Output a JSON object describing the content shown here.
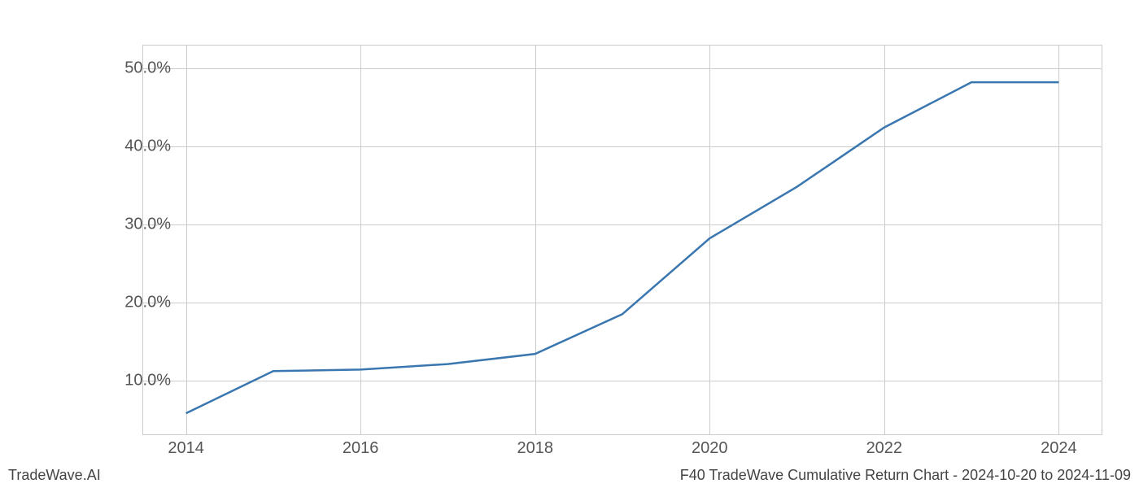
{
  "chart": {
    "type": "line",
    "line_color": "#3a76af",
    "line_width": 2.5,
    "background_color": "#ffffff",
    "grid_color": "#cccccc",
    "tick_label_color": "#555555",
    "tick_fontsize": 20,
    "footer_fontsize": 18,
    "footer_color": "#444444",
    "xlim": [
      2013.5,
      2024.5
    ],
    "ylim": [
      3.0,
      53.0
    ],
    "x_ticks": [
      2014,
      2016,
      2018,
      2020,
      2022,
      2024
    ],
    "x_tick_labels": [
      "2014",
      "2016",
      "2018",
      "2020",
      "2022",
      "2024"
    ],
    "y_ticks": [
      10,
      20,
      30,
      40,
      50
    ],
    "y_tick_labels": [
      "10.0%",
      "20.0%",
      "30.0%",
      "40.0%",
      "50.0%"
    ],
    "x_values": [
      2014,
      2015,
      2016,
      2017,
      2018,
      2019,
      2020,
      2021,
      2022,
      2023,
      2024
    ],
    "y_values": [
      5.8,
      11.2,
      11.4,
      12.1,
      13.4,
      18.5,
      28.2,
      34.8,
      42.4,
      48.2,
      48.2
    ]
  },
  "footer": {
    "left": "TradeWave.AI",
    "right": "F40 TradeWave Cumulative Return Chart - 2024-10-20 to 2024-11-09"
  }
}
